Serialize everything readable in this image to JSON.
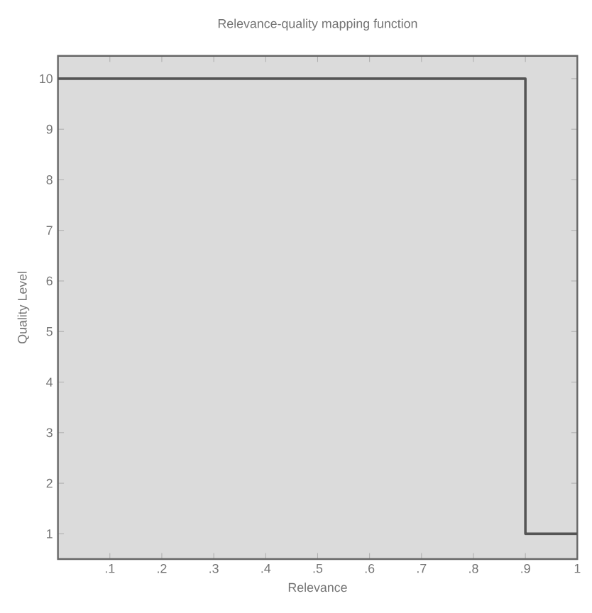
{
  "chart_data": {
    "type": "step",
    "title": "Relevance-quality mapping function",
    "xlabel": "Relevance",
    "ylabel": "Quality Level",
    "x": [
      0,
      0.9,
      1
    ],
    "values": [
      10,
      1,
      1
    ],
    "color": "#555555",
    "xlim": [
      0,
      1
    ],
    "ylim": [
      0.5,
      10.45
    ],
    "xticks": [
      {
        "value": 0.1,
        "label": ".1"
      },
      {
        "value": 0.2,
        "label": ".2"
      },
      {
        "value": 0.3,
        "label": ".3"
      },
      {
        "value": 0.4,
        "label": ".4"
      },
      {
        "value": 0.5,
        "label": ".5"
      },
      {
        "value": 0.6,
        "label": ".6"
      },
      {
        "value": 0.7,
        "label": ".7"
      },
      {
        "value": 0.8,
        "label": ".8"
      },
      {
        "value": 0.9,
        "label": ".9"
      },
      1
    ],
    "yticks": [
      1,
      2,
      3,
      4,
      5,
      6,
      7,
      8,
      9,
      10
    ],
    "grid": false
  }
}
